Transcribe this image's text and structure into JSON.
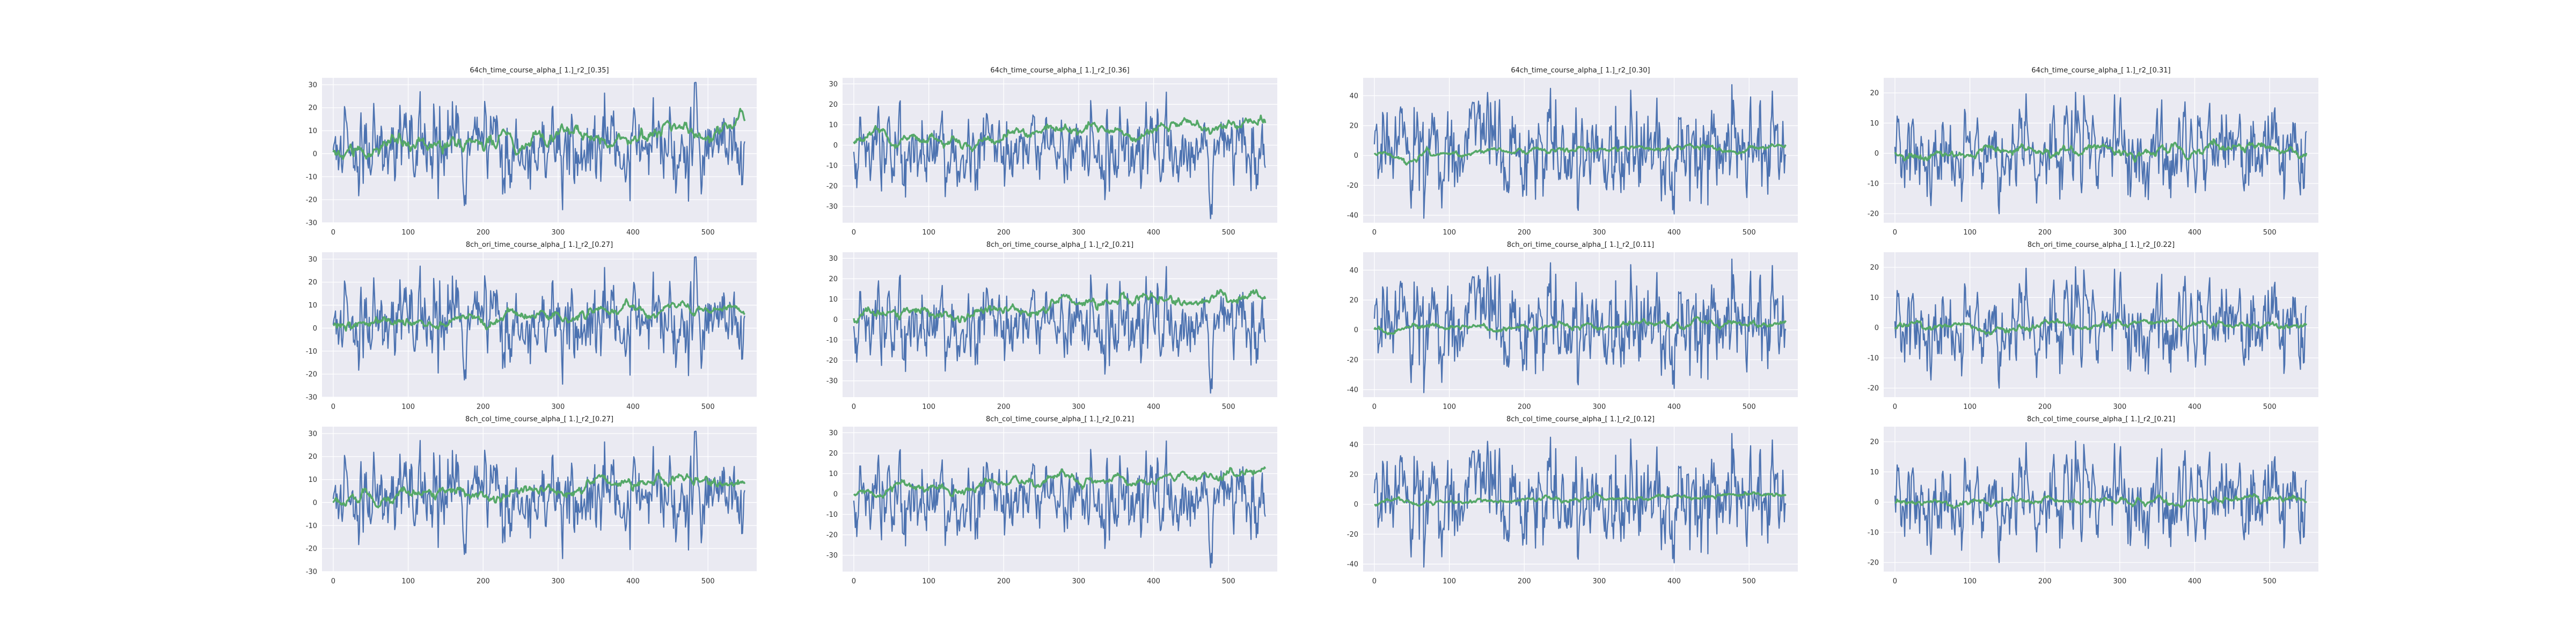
{
  "figure": {
    "background": "#ffffff",
    "axes_facecolor": "#eaeaf2",
    "grid_color": "#ffffff",
    "line_colors": [
      "#4c72b0",
      "#55a868"
    ]
  },
  "chart_data": [
    {
      "type": "line",
      "title": "64ch_time_course_alpha_[ 1.]_r2_[0.35]",
      "xlim": [
        -15,
        565
      ],
      "ylim": [
        -30,
        33
      ],
      "xticks": [
        0,
        100,
        200,
        300,
        400,
        500
      ],
      "yticks": [
        -30,
        -20,
        -10,
        0,
        10,
        20,
        30
      ],
      "grid": true,
      "legend": "none",
      "series": [
        {
          "color": "#4c72b0",
          "n_points": 550,
          "x_range": [
            0,
            549
          ],
          "y_range": [
            -26,
            31
          ],
          "profile": "noisy_ts",
          "trend": [
            0,
            0
          ],
          "seed": 11
        },
        {
          "color": "#55a868",
          "n_points": 550,
          "x_range": [
            0,
            549
          ],
          "y_range": [
            -6,
            22
          ],
          "profile": "smooth_ts",
          "trend": [
            0,
            12
          ],
          "seed": 12
        }
      ]
    },
    {
      "type": "line",
      "title": "64ch_time_course_alpha_[ 1.]_r2_[0.36]",
      "xlim": [
        -15,
        565
      ],
      "ylim": [
        -38,
        33
      ],
      "xticks": [
        0,
        100,
        200,
        300,
        400,
        500
      ],
      "yticks": [
        -30,
        -20,
        -10,
        0,
        10,
        20,
        30
      ],
      "grid": true,
      "legend": "none",
      "series": [
        {
          "color": "#4c72b0",
          "n_points": 550,
          "x_range": [
            0,
            549
          ],
          "y_range": [
            -36,
            30
          ],
          "profile": "noisy_ts",
          "trend": [
            0,
            0
          ],
          "seed": 21
        },
        {
          "color": "#55a868",
          "n_points": 550,
          "x_range": [
            0,
            549
          ],
          "y_range": [
            -6,
            26
          ],
          "profile": "smooth_ts",
          "trend": [
            0,
            12
          ],
          "seed": 22
        }
      ]
    },
    {
      "type": "line",
      "title": "64ch_time_course_alpha_[ 1.]_r2_[0.30]",
      "xlim": [
        -15,
        565
      ],
      "ylim": [
        -45,
        52
      ],
      "xticks": [
        0,
        100,
        200,
        300,
        400,
        500
      ],
      "yticks": [
        -40,
        -20,
        0,
        20,
        40
      ],
      "grid": true,
      "legend": "none",
      "series": [
        {
          "color": "#4c72b0",
          "n_points": 550,
          "x_range": [
            0,
            549
          ],
          "y_range": [
            -42,
            50
          ],
          "profile": "noisy_ts",
          "trend": [
            0,
            0
          ],
          "seed": 31
        },
        {
          "color": "#55a868",
          "n_points": 550,
          "x_range": [
            0,
            549
          ],
          "y_range": [
            -10,
            14
          ],
          "profile": "smooth_ts",
          "trend": [
            0,
            6
          ],
          "seed": 32
        }
      ]
    },
    {
      "type": "line",
      "title": "64ch_time_course_alpha_[ 1.]_r2_[0.31]",
      "xlim": [
        -15,
        565
      ],
      "ylim": [
        -23,
        25
      ],
      "xticks": [
        0,
        100,
        200,
        300,
        400,
        500
      ],
      "yticks": [
        -20,
        -10,
        0,
        10,
        20
      ],
      "grid": true,
      "legend": "none",
      "series": [
        {
          "color": "#4c72b0",
          "n_points": 550,
          "x_range": [
            0,
            549
          ],
          "y_range": [
            -20,
            23
          ],
          "profile": "noisy_ts",
          "trend": [
            0,
            0
          ],
          "seed": 41
        },
        {
          "color": "#55a868",
          "n_points": 550,
          "x_range": [
            0,
            549
          ],
          "y_range": [
            -6,
            8
          ],
          "profile": "smooth_ts",
          "trend": [
            0,
            1
          ],
          "seed": 42
        }
      ]
    },
    {
      "type": "line",
      "title": "8ch_ori_time_course_alpha_[ 1.]_r2_[0.27]",
      "xlim": [
        -15,
        565
      ],
      "ylim": [
        -30,
        33
      ],
      "xticks": [
        0,
        100,
        200,
        300,
        400,
        500
      ],
      "yticks": [
        -30,
        -20,
        -10,
        0,
        10,
        20,
        30
      ],
      "grid": true,
      "legend": "none",
      "series": [
        {
          "color": "#4c72b0",
          "n_points": 550,
          "x_range": [
            0,
            549
          ],
          "y_range": [
            -26,
            31
          ],
          "profile": "noisy_ts",
          "trend": [
            0,
            0
          ],
          "seed": 11
        },
        {
          "color": "#55a868",
          "n_points": 550,
          "x_range": [
            0,
            549
          ],
          "y_range": [
            -4,
            16
          ],
          "profile": "smooth_ts",
          "trend": [
            0,
            10
          ],
          "seed": 52
        }
      ]
    },
    {
      "type": "line",
      "title": "8ch_ori_time_course_alpha_[ 1.]_r2_[0.21]",
      "xlim": [
        -15,
        565
      ],
      "ylim": [
        -38,
        33
      ],
      "xticks": [
        0,
        100,
        200,
        300,
        400,
        500
      ],
      "yticks": [
        -30,
        -20,
        -10,
        0,
        10,
        20,
        30
      ],
      "grid": true,
      "legend": "none",
      "series": [
        {
          "color": "#4c72b0",
          "n_points": 550,
          "x_range": [
            0,
            549
          ],
          "y_range": [
            -36,
            30
          ],
          "profile": "noisy_ts",
          "trend": [
            0,
            0
          ],
          "seed": 21
        },
        {
          "color": "#55a868",
          "n_points": 550,
          "x_range": [
            0,
            549
          ],
          "y_range": [
            -4,
            18
          ],
          "profile": "smooth_ts",
          "trend": [
            0,
            12
          ],
          "seed": 62
        }
      ]
    },
    {
      "type": "line",
      "title": "8ch_ori_time_course_alpha_[ 1.]_r2_[0.11]",
      "xlim": [
        -15,
        565
      ],
      "ylim": [
        -45,
        52
      ],
      "xticks": [
        0,
        100,
        200,
        300,
        400,
        500
      ],
      "yticks": [
        -40,
        -20,
        0,
        20,
        40
      ],
      "grid": true,
      "legend": "none",
      "series": [
        {
          "color": "#4c72b0",
          "n_points": 550,
          "x_range": [
            0,
            549
          ],
          "y_range": [
            -42,
            50
          ],
          "profile": "noisy_ts",
          "trend": [
            0,
            0
          ],
          "seed": 31
        },
        {
          "color": "#55a868",
          "n_points": 550,
          "x_range": [
            0,
            549
          ],
          "y_range": [
            -6,
            10
          ],
          "profile": "smooth_ts",
          "trend": [
            0,
            6
          ],
          "seed": 72
        }
      ]
    },
    {
      "type": "line",
      "title": "8ch_ori_time_course_alpha_[ 1.]_r2_[0.22]",
      "xlim": [
        -15,
        565
      ],
      "ylim": [
        -23,
        25
      ],
      "xticks": [
        0,
        100,
        200,
        300,
        400,
        500
      ],
      "yticks": [
        -20,
        -10,
        0,
        10,
        20
      ],
      "grid": true,
      "legend": "none",
      "series": [
        {
          "color": "#4c72b0",
          "n_points": 550,
          "x_range": [
            0,
            549
          ],
          "y_range": [
            -20,
            23
          ],
          "profile": "noisy_ts",
          "trend": [
            0,
            0
          ],
          "seed": 41
        },
        {
          "color": "#55a868",
          "n_points": 550,
          "x_range": [
            0,
            549
          ],
          "y_range": [
            -4,
            5
          ],
          "profile": "smooth_ts",
          "trend": [
            0,
            1
          ],
          "seed": 82
        }
      ]
    },
    {
      "type": "line",
      "title": "8ch_col_time_course_alpha_[ 1.]_r2_[0.27]",
      "xlim": [
        -15,
        565
      ],
      "ylim": [
        -30,
        33
      ],
      "xticks": [
        0,
        100,
        200,
        300,
        400,
        500
      ],
      "yticks": [
        -30,
        -20,
        -10,
        0,
        10,
        20,
        30
      ],
      "grid": true,
      "legend": "none",
      "series": [
        {
          "color": "#4c72b0",
          "n_points": 550,
          "x_range": [
            0,
            549
          ],
          "y_range": [
            -26,
            31
          ],
          "profile": "noisy_ts",
          "trend": [
            0,
            0
          ],
          "seed": 11
        },
        {
          "color": "#55a868",
          "n_points": 550,
          "x_range": [
            0,
            549
          ],
          "y_range": [
            -4,
            16
          ],
          "profile": "smooth_ts",
          "trend": [
            0,
            10
          ],
          "seed": 92
        }
      ]
    },
    {
      "type": "line",
      "title": "8ch_col_time_course_alpha_[ 1.]_r2_[0.21]",
      "xlim": [
        -15,
        565
      ],
      "ylim": [
        -38,
        33
      ],
      "xticks": [
        0,
        100,
        200,
        300,
        400,
        500
      ],
      "yticks": [
        -30,
        -20,
        -10,
        0,
        10,
        20,
        30
      ],
      "grid": true,
      "legend": "none",
      "series": [
        {
          "color": "#4c72b0",
          "n_points": 550,
          "x_range": [
            0,
            549
          ],
          "y_range": [
            -36,
            30
          ],
          "profile": "noisy_ts",
          "trend": [
            0,
            0
          ],
          "seed": 21
        },
        {
          "color": "#55a868",
          "n_points": 550,
          "x_range": [
            0,
            549
          ],
          "y_range": [
            -4,
            18
          ],
          "profile": "smooth_ts",
          "trend": [
            0,
            12
          ],
          "seed": 102
        }
      ]
    },
    {
      "type": "line",
      "title": "8ch_col_time_course_alpha_[ 1.]_r2_[0.12]",
      "xlim": [
        -15,
        565
      ],
      "ylim": [
        -45,
        52
      ],
      "xticks": [
        0,
        100,
        200,
        300,
        400,
        500
      ],
      "yticks": [
        -40,
        -20,
        0,
        20,
        40
      ],
      "grid": true,
      "legend": "none",
      "series": [
        {
          "color": "#4c72b0",
          "n_points": 550,
          "x_range": [
            0,
            549
          ],
          "y_range": [
            -42,
            50
          ],
          "profile": "noisy_ts",
          "trend": [
            0,
            0
          ],
          "seed": 31
        },
        {
          "color": "#55a868",
          "n_points": 550,
          "x_range": [
            0,
            549
          ],
          "y_range": [
            -6,
            10
          ],
          "profile": "smooth_ts",
          "trend": [
            0,
            6
          ],
          "seed": 112
        }
      ]
    },
    {
      "type": "line",
      "title": "8ch_col_time_course_alpha_[ 1.]_r2_[0.21]",
      "xlim": [
        -15,
        565
      ],
      "ylim": [
        -23,
        25
      ],
      "xticks": [
        0,
        100,
        200,
        300,
        400,
        500
      ],
      "yticks": [
        -20,
        -10,
        0,
        10,
        20
      ],
      "grid": true,
      "legend": "none",
      "series": [
        {
          "color": "#4c72b0",
          "n_points": 550,
          "x_range": [
            0,
            549
          ],
          "y_range": [
            -20,
            23
          ],
          "profile": "noisy_ts",
          "trend": [
            0,
            0
          ],
          "seed": 41
        },
        {
          "color": "#55a868",
          "n_points": 550,
          "x_range": [
            0,
            549
          ],
          "y_range": [
            -4,
            5
          ],
          "profile": "smooth_ts",
          "trend": [
            0,
            1
          ],
          "seed": 122
        }
      ]
    }
  ]
}
